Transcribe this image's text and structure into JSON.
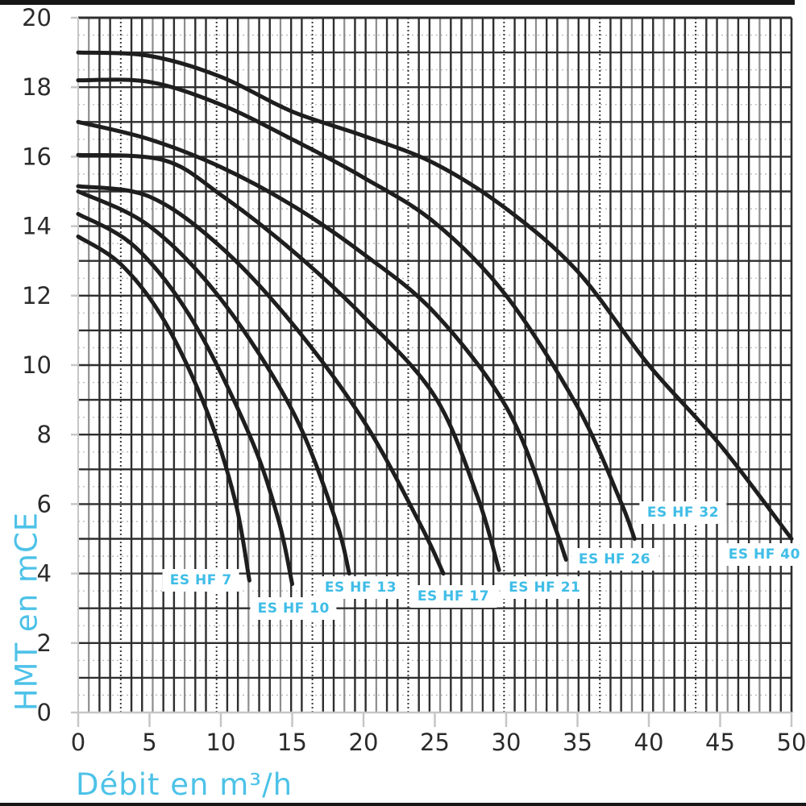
{
  "figure": {
    "x_axis_title": "Débit en m³/h",
    "y_axis_title": "HMT en mCE"
  },
  "colors": {
    "accent": "#4dc2e8",
    "curve": "#1e1e1e",
    "grid_major": "#2e2e2e",
    "grid_mid": "#8d8d8d",
    "grid_light": "#c6c6c6",
    "grid_minor_dotted": "#b8b8b8",
    "tick_label": "#2b2b2b",
    "curve_label_text": "#3fbde7",
    "curve_label_bg": "#ffffff"
  },
  "chart_data": {
    "type": "line",
    "title": "",
    "xlabel": "Débit en m³/h",
    "ylabel": "HMT en mCE",
    "xlim": [
      0,
      50
    ],
    "ylim": [
      0,
      20
    ],
    "x_ticks": [
      0,
      5,
      10,
      15,
      20,
      25,
      30,
      35,
      40,
      45,
      50
    ],
    "y_ticks": [
      0,
      2,
      4,
      6,
      8,
      10,
      12,
      14,
      16,
      18,
      20
    ],
    "grid": "on",
    "legend_position": "labels-on-curves",
    "series": [
      {
        "name": "ES HF 7",
        "points": [
          [
            0,
            13.7
          ],
          [
            3,
            12.9
          ],
          [
            6,
            11.3
          ],
          [
            9,
            8.7
          ],
          [
            11,
            6.1
          ],
          [
            12,
            3.8
          ]
        ]
      },
      {
        "name": "ES HF 10",
        "points": [
          [
            0,
            14.35
          ],
          [
            4,
            13.4
          ],
          [
            8,
            11.3
          ],
          [
            12,
            8.0
          ],
          [
            14,
            5.6
          ],
          [
            15,
            3.7
          ]
        ]
      },
      {
        "name": "ES HF 13",
        "points": [
          [
            0,
            15.0
          ],
          [
            5,
            14.0
          ],
          [
            10,
            11.9
          ],
          [
            15,
            8.7
          ],
          [
            18,
            5.6
          ],
          [
            19,
            4.0
          ]
        ]
      },
      {
        "name": "ES HF 17",
        "points": [
          [
            0,
            15.15
          ],
          [
            5,
            14.85
          ],
          [
            10,
            13.4
          ],
          [
            15,
            11.2
          ],
          [
            20,
            8.4
          ],
          [
            24,
            5.4
          ],
          [
            25.6,
            4.0
          ]
        ]
      },
      {
        "name": "ES HF 21",
        "points": [
          [
            0,
            16.05
          ],
          [
            6,
            15.9
          ],
          [
            10,
            14.9
          ],
          [
            15,
            13.3
          ],
          [
            20,
            11.4
          ],
          [
            25,
            9.1
          ],
          [
            28,
            6.2
          ],
          [
            29.5,
            4.1
          ]
        ]
      },
      {
        "name": "ES HF 26",
        "points": [
          [
            0,
            17.0
          ],
          [
            5,
            16.5
          ],
          [
            10,
            15.7
          ],
          [
            15,
            14.6
          ],
          [
            20,
            13.2
          ],
          [
            25,
            11.5
          ],
          [
            30,
            8.8
          ],
          [
            33,
            5.8
          ],
          [
            34.2,
            4.4
          ]
        ]
      },
      {
        "name": "ES HF 32",
        "points": [
          [
            0,
            18.2
          ],
          [
            5,
            18.15
          ],
          [
            10,
            17.5
          ],
          [
            15,
            16.5
          ],
          [
            20,
            15.4
          ],
          [
            25,
            14.1
          ],
          [
            30,
            12.0
          ],
          [
            35,
            8.8
          ],
          [
            38,
            6.1
          ],
          [
            39,
            5.0
          ]
        ]
      },
      {
        "name": "ES HF 40",
        "points": [
          [
            0,
            19.0
          ],
          [
            5,
            18.9
          ],
          [
            10,
            18.3
          ],
          [
            15,
            17.3
          ],
          [
            20,
            16.6
          ],
          [
            25,
            15.8
          ],
          [
            30,
            14.5
          ],
          [
            35,
            12.7
          ],
          [
            40,
            10.0
          ],
          [
            45,
            7.7
          ],
          [
            50,
            5.0
          ]
        ]
      }
    ],
    "curve_labels": [
      {
        "text": "ES HF 7",
        "q": 8.6,
        "h": 3.8
      },
      {
        "text": "ES HF 10",
        "q": 15.1,
        "h": 3.0
      },
      {
        "text": "ES HF 13",
        "q": 19.8,
        "h": 3.6
      },
      {
        "text": "ES HF 17",
        "q": 26.3,
        "h": 3.35
      },
      {
        "text": "ES HF 21",
        "q": 32.7,
        "h": 3.6
      },
      {
        "text": "ES HF 26",
        "q": 37.6,
        "h": 4.4
      },
      {
        "text": "ES HF 32",
        "q": 42.4,
        "h": 5.75
      },
      {
        "text": "ES HF 40",
        "q": 48.1,
        "h": 4.55
      }
    ]
  }
}
